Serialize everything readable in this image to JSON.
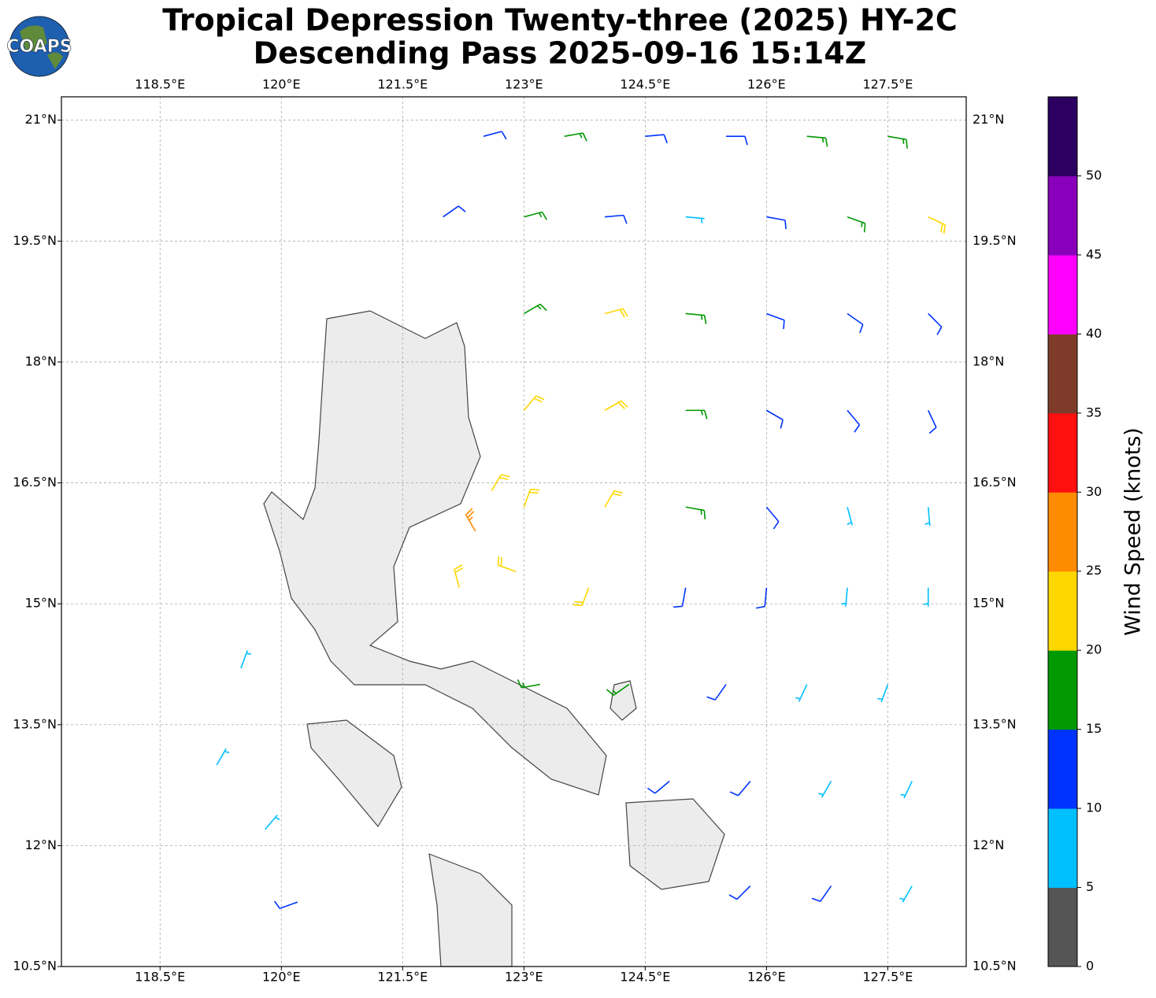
{
  "title": "Tropical Depression Twenty-three (2025) HY-2C",
  "subtitle": "Descending Pass 2025-09-16 15:14Z",
  "logo": "COAPS",
  "chart_data": {
    "type": "barbs",
    "xlim": [
      117.28,
      128.47
    ],
    "ylim": [
      10.5,
      21.29
    ],
    "xticks": [
      {
        "value": 118.5,
        "label": "118.5°E"
      },
      {
        "value": 120,
        "label": "120°E"
      },
      {
        "value": 121.5,
        "label": "121.5°E"
      },
      {
        "value": 123,
        "label": "123°E"
      },
      {
        "value": 124.5,
        "label": "124.5°E"
      },
      {
        "value": 126,
        "label": "126°E"
      },
      {
        "value": 127.5,
        "label": "127.5°E"
      }
    ],
    "yticks": [
      {
        "value": 10.5,
        "label": "10.5°N"
      },
      {
        "value": 12,
        "label": "12°N"
      },
      {
        "value": 13.5,
        "label": "13.5°N"
      },
      {
        "value": 15,
        "label": "15°N"
      },
      {
        "value": 16.5,
        "label": "16.5°N"
      },
      {
        "value": 18,
        "label": "18°N"
      },
      {
        "value": 19.5,
        "label": "19.5°N"
      },
      {
        "value": 21,
        "label": "21°N"
      }
    ],
    "grid": true,
    "barbs": {
      "lon": [
        122.5,
        123.5,
        124.5,
        125.5,
        126.5,
        127.5,
        122,
        123,
        124,
        125,
        126,
        127,
        128,
        123,
        124,
        125,
        126,
        127,
        128,
        123,
        124,
        125,
        126,
        127,
        128,
        123,
        124,
        125,
        126,
        127,
        128,
        122.2,
        123.8,
        125,
        126,
        127,
        128,
        123.2,
        124.3,
        125.5,
        126.5,
        127.5,
        124.8,
        125.8,
        126.8,
        127.8,
        125.8,
        126.8,
        127.8,
        119.2,
        119.8,
        120.2,
        119.5,
        122.4,
        122.9,
        122.6
      ],
      "lat": [
        20.8,
        20.8,
        20.8,
        20.8,
        20.8,
        20.8,
        19.8,
        19.8,
        19.8,
        19.8,
        19.8,
        19.8,
        19.8,
        18.6,
        18.6,
        18.6,
        18.6,
        18.6,
        18.6,
        17.4,
        17.4,
        17.4,
        17.4,
        17.4,
        17.4,
        16.2,
        16.2,
        16.2,
        16.2,
        16.2,
        16.2,
        15.2,
        15.2,
        15.2,
        15.2,
        15.2,
        15.2,
        14,
        14,
        14,
        14,
        14,
        12.8,
        12.8,
        12.8,
        12.8,
        11.5,
        11.5,
        11.5,
        13,
        12.2,
        11.3,
        14.2,
        15.9,
        15.4,
        16.4
      ],
      "speed": [
        13,
        16,
        14,
        13,
        17,
        19,
        12,
        18,
        14,
        9,
        13,
        17,
        22,
        17,
        21,
        16,
        13,
        12,
        11,
        20,
        22,
        18,
        14,
        12,
        11,
        22,
        21,
        17,
        13,
        9,
        8,
        22,
        20,
        14,
        11,
        8,
        8,
        18,
        17,
        12,
        9,
        8,
        14,
        12,
        9,
        8,
        12,
        11,
        9,
        8,
        9,
        12,
        8,
        26,
        24,
        23
      ],
      "direction": [
        75,
        80,
        85,
        90,
        95,
        100,
        55,
        75,
        85,
        95,
        100,
        110,
        115,
        60,
        75,
        95,
        110,
        125,
        135,
        40,
        60,
        90,
        120,
        140,
        155,
        20,
        30,
        100,
        140,
        165,
        175,
        345,
        200,
        190,
        185,
        185,
        180,
        260,
        235,
        215,
        205,
        200,
        230,
        220,
        210,
        205,
        225,
        215,
        210,
        30,
        40,
        250,
        20,
        330,
        290,
        30
      ]
    },
    "colorbar": {
      "label": "Wind Speed (knots)",
      "lim": [
        0,
        55
      ],
      "ticks": [
        0,
        5,
        10,
        15,
        20,
        25,
        30,
        35,
        40,
        45,
        50
      ],
      "colors": [
        "#555555",
        "#00bfff",
        "#0033ff",
        "#009900",
        "#ffd700",
        "#ff8c00",
        "#ff1010",
        "#7f3b2a",
        "#ff00ff",
        "#8800bb",
        "#2b0060"
      ]
    }
  }
}
